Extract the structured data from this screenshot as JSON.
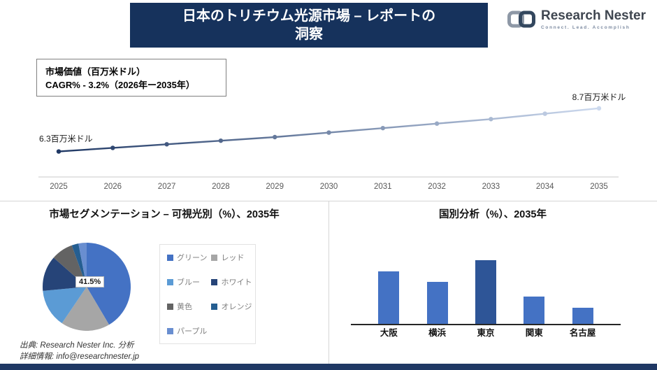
{
  "header": {
    "title_line1": "日本のトリチウム光源市場 – レポートの",
    "title_line2": "洞察"
  },
  "logo": {
    "name": "Research Nester",
    "tagline": "Connect. Lead. Accomplish"
  },
  "info_box": {
    "line1": "市場価値（百万米ドル）",
    "line2": "CAGR% - 3.2%（2026年ー2035年）"
  },
  "sections": {
    "pie_title": "市場セグメンテーション – 可視光別（%）、2035年",
    "bar_title": "国別分析（%）、2035年"
  },
  "footer": {
    "source": "出典: Research Nester Inc. 分析",
    "contact": "詳細情報: info@researchnester.jp",
    "accent_color": "#1f3864"
  },
  "chart_data": [
    {
      "type": "line",
      "title": "市場価値（百万米ドル）",
      "x": [
        2025,
        2026,
        2027,
        2028,
        2029,
        2030,
        2031,
        2032,
        2033,
        2034,
        2035
      ],
      "values": [
        6.3,
        6.5,
        6.7,
        6.9,
        7.1,
        7.35,
        7.6,
        7.85,
        8.1,
        8.4,
        8.7
      ],
      "first_label": "6.3百万米ドル",
      "last_label": "8.7百万米ドル",
      "cagr": "3.2%",
      "ylim": [
        5.0,
        9.2
      ],
      "grid": false,
      "line_color_start": "#1f3864",
      "line_color_end": "#ccd9ee"
    },
    {
      "type": "pie",
      "title": "市場セグメンテーション – 可視光別（%）、2035年",
      "labels": [
        "グリーン",
        "レッド",
        "ブルー",
        "ホワイト",
        "黄色",
        "オレンジ",
        "パープル"
      ],
      "values": [
        41.5,
        18,
        14,
        13,
        8,
        2.5,
        3
      ],
      "colors": [
        "#4472c4",
        "#a6a6a6",
        "#5b9bd5",
        "#264478",
        "#636363",
        "#255e91",
        "#698ed0"
      ],
      "callout_label": "41.5%",
      "legend_position": "right"
    },
    {
      "type": "bar",
      "title": "国別分析（%）、2035年",
      "categories": [
        "大阪",
        "横浜",
        "東京",
        "関東",
        "名古屋"
      ],
      "values": [
        29,
        23,
        35,
        15,
        9
      ],
      "colors": [
        "#4472c4",
        "#4472c4",
        "#2e5597",
        "#4472c4",
        "#4472c4"
      ],
      "ylim": [
        0,
        36
      ],
      "grid": false
    }
  ]
}
